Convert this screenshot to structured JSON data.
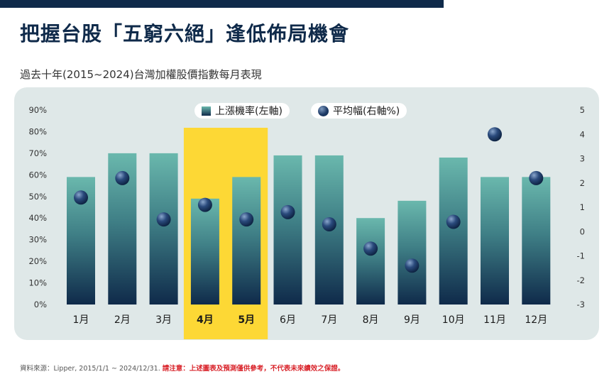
{
  "title": "把握台股「五窮六絕」逢低佈局機會",
  "subtitle": "過去十年(2015~2024)台灣加權股價指數每月表現",
  "legend": {
    "bar_label": "上漲機率(左軸)",
    "dot_label": "平均幅(右軸%)"
  },
  "source": {
    "text": "資料來源：Lipper, 2015/1/1 ~ 2024/12/31. ",
    "warning": "請注意：上述圖表及預測僅供參考，不代表未來績效之保證。"
  },
  "colors": {
    "bar_top": "#6ab8ad",
    "bar_bottom": "#0f2a4a",
    "highlight": "#fdd835",
    "dot": "#1d3a66",
    "panel_bg": "#dfe8e8",
    "title": "#0f2a4a"
  },
  "chart_data": {
    "type": "bar",
    "categories": [
      "1月",
      "2月",
      "3月",
      "4月",
      "5月",
      "6月",
      "7月",
      "8月",
      "9月",
      "10月",
      "11月",
      "12月"
    ],
    "highlighted_categories": [
      "4月",
      "5月"
    ],
    "series": [
      {
        "name": "上漲機率(左軸)",
        "type": "bar",
        "axis": "left",
        "values": [
          59,
          70,
          70,
          49,
          59,
          69,
          69,
          40,
          48,
          68,
          59,
          59
        ]
      },
      {
        "name": "平均幅(右軸%)",
        "type": "scatter",
        "axis": "right",
        "values": [
          1.4,
          2.2,
          0.5,
          1.1,
          0.5,
          0.8,
          0.3,
          -0.7,
          -1.4,
          0.4,
          4.0,
          2.2
        ]
      }
    ],
    "y_left": {
      "min": 0,
      "max": 90,
      "ticks": [
        0,
        10,
        20,
        30,
        40,
        50,
        60,
        70,
        80,
        90
      ],
      "tick_labels": [
        "0%",
        "10%",
        "20%",
        "30%",
        "40%",
        "50%",
        "60%",
        "70%",
        "80%",
        "90%"
      ]
    },
    "y_right": {
      "min": -3,
      "max": 5,
      "ticks": [
        -3,
        -2,
        -1,
        0,
        1,
        2,
        3,
        4,
        5
      ],
      "tick_labels": [
        "-3",
        "-2",
        "-1",
        "0",
        "1",
        "2",
        "3",
        "4",
        "5"
      ]
    },
    "legend_position": "top-center",
    "grid": false
  }
}
